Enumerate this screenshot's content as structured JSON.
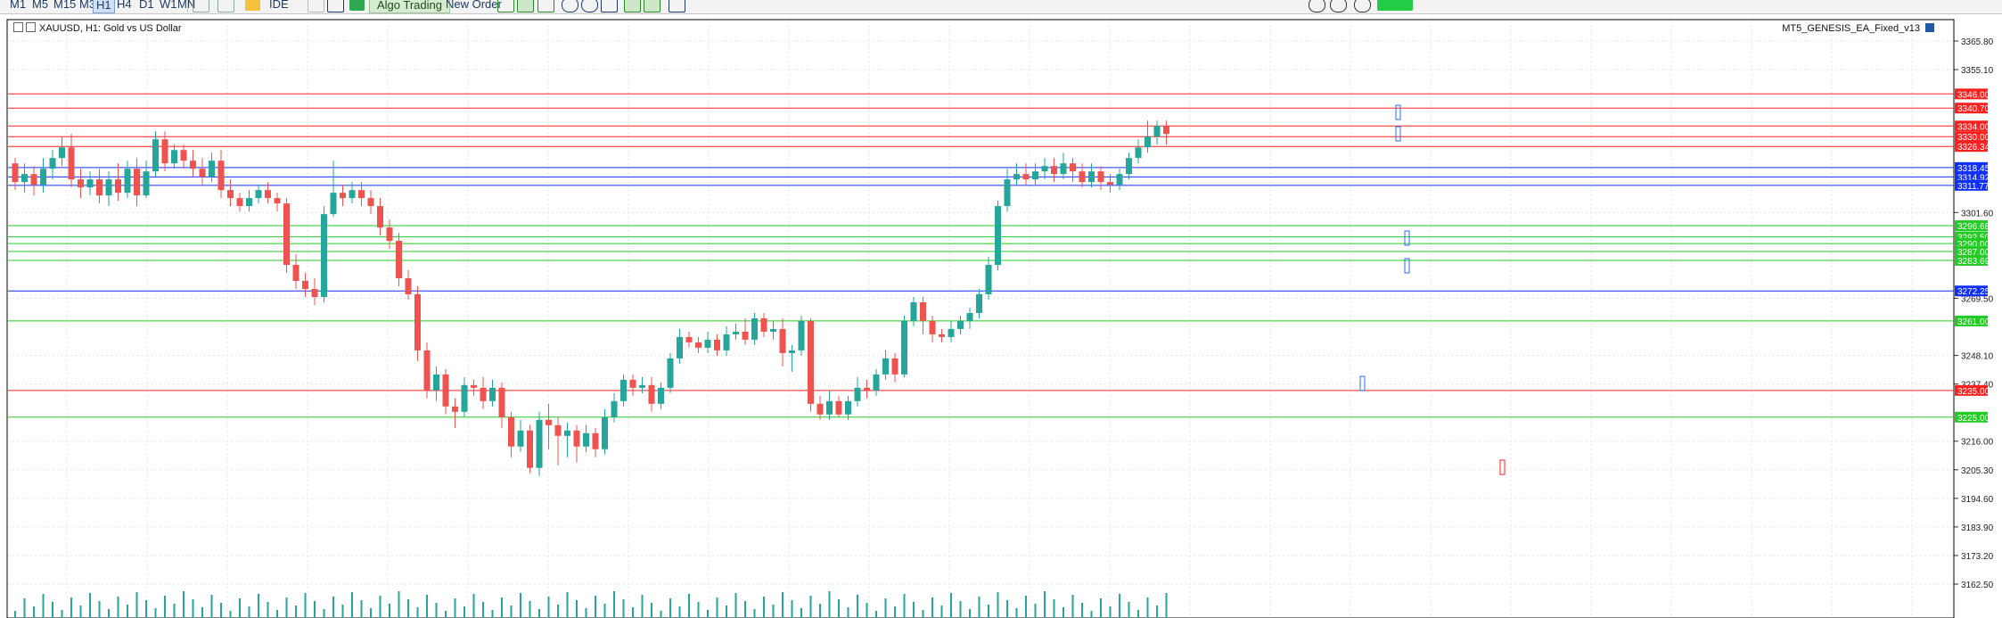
{
  "toolbar": {
    "timeframes": [
      "M1",
      "M5",
      "M15",
      "M30",
      "H1",
      "H4",
      "D1",
      "W1",
      "MN"
    ],
    "active_timeframe": "H1",
    "ide_label": "IDE",
    "algo_label": "Algo Trading",
    "new_order_label": "New Order"
  },
  "chart": {
    "symbol_text": "XAUUSD, H1:  Gold vs US Dollar",
    "ea_name": "MT5_GENESIS_EA_Fixed_v13",
    "y_ticks": [
      "3365.80",
      "3355.10",
      "3301.60",
      "3269.50",
      "3248.10",
      "3237.40",
      "3216.00",
      "3205.30",
      "3194.60",
      "3183.90",
      "3173.20",
      "3162.50"
    ],
    "level_tags": {
      "red": [
        "3346.00",
        "3340.70",
        "3334.00",
        "3330.00",
        "3326.34",
        "3235.00"
      ],
      "blue": [
        "3318.45",
        "3314.92",
        "3311.77",
        "3272.25"
      ],
      "green": [
        "3296.68",
        "3292.50",
        "3290.00",
        "3287.00",
        "3283.69",
        "3261.00",
        "3225.00"
      ]
    },
    "colors": {
      "bull": "#26a69a",
      "bear": "#ef5350",
      "red_line": "#ff2020",
      "blue_line": "#1030ff",
      "green_line": "#22cc22"
    }
  }
}
